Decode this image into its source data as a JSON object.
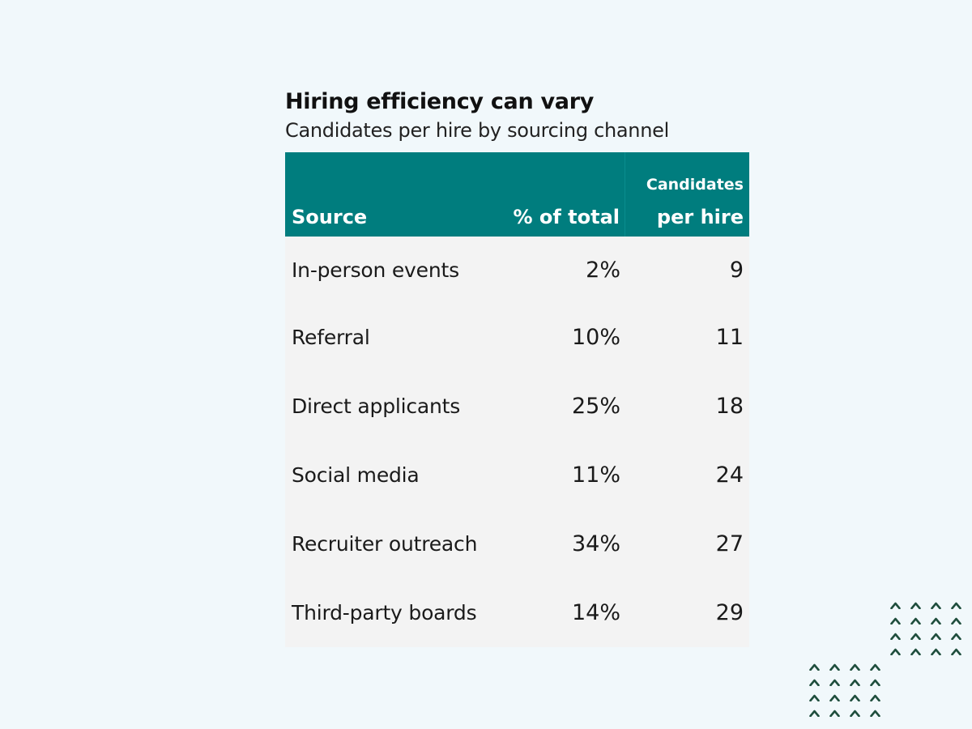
{
  "header": {
    "title": "Hiring efficiency can vary",
    "subtitle": "Candidates per hire by sourcing channel"
  },
  "table": {
    "columns": {
      "source": "Source",
      "pct": "% of total",
      "cph_line1": "Candidates",
      "cph_line2": "per hire"
    },
    "rows": [
      {
        "source": "In-person events",
        "pct": "2%",
        "cph": "9"
      },
      {
        "source": "Referral",
        "pct": "10%",
        "cph": "11"
      },
      {
        "source": "Direct applicants",
        "pct": "25%",
        "cph": "18"
      },
      {
        "source": "Social media",
        "pct": "11%",
        "cph": "24"
      },
      {
        "source": "Recruiter outreach",
        "pct": "34%",
        "cph": "27"
      },
      {
        "source": "Third-party boards",
        "pct": "14%",
        "cph": "29"
      }
    ]
  },
  "colors": {
    "header_bg": "#007d7e",
    "body_bg": "#f3f3f3",
    "page_bg": "#f1f8fb",
    "decor_chevron": "#1f4e3d"
  },
  "decor": {
    "icon": "chevron-up-icon",
    "groups": [
      {
        "rows": 4,
        "cols": 4
      },
      {
        "rows": 4,
        "cols": 4
      }
    ]
  },
  "chart_data": {
    "type": "table",
    "title": "Hiring efficiency can vary",
    "subtitle": "Candidates per hire by sourcing channel",
    "columns": [
      "Source",
      "% of total",
      "Candidates per hire"
    ],
    "categories": [
      "In-person events",
      "Referral",
      "Direct applicants",
      "Social media",
      "Recruiter outreach",
      "Third-party boards"
    ],
    "series": [
      {
        "name": "% of total",
        "values": [
          2,
          10,
          25,
          11,
          34,
          14
        ],
        "unit": "%"
      },
      {
        "name": "Candidates per hire",
        "values": [
          9,
          11,
          18,
          24,
          27,
          29
        ]
      }
    ]
  }
}
